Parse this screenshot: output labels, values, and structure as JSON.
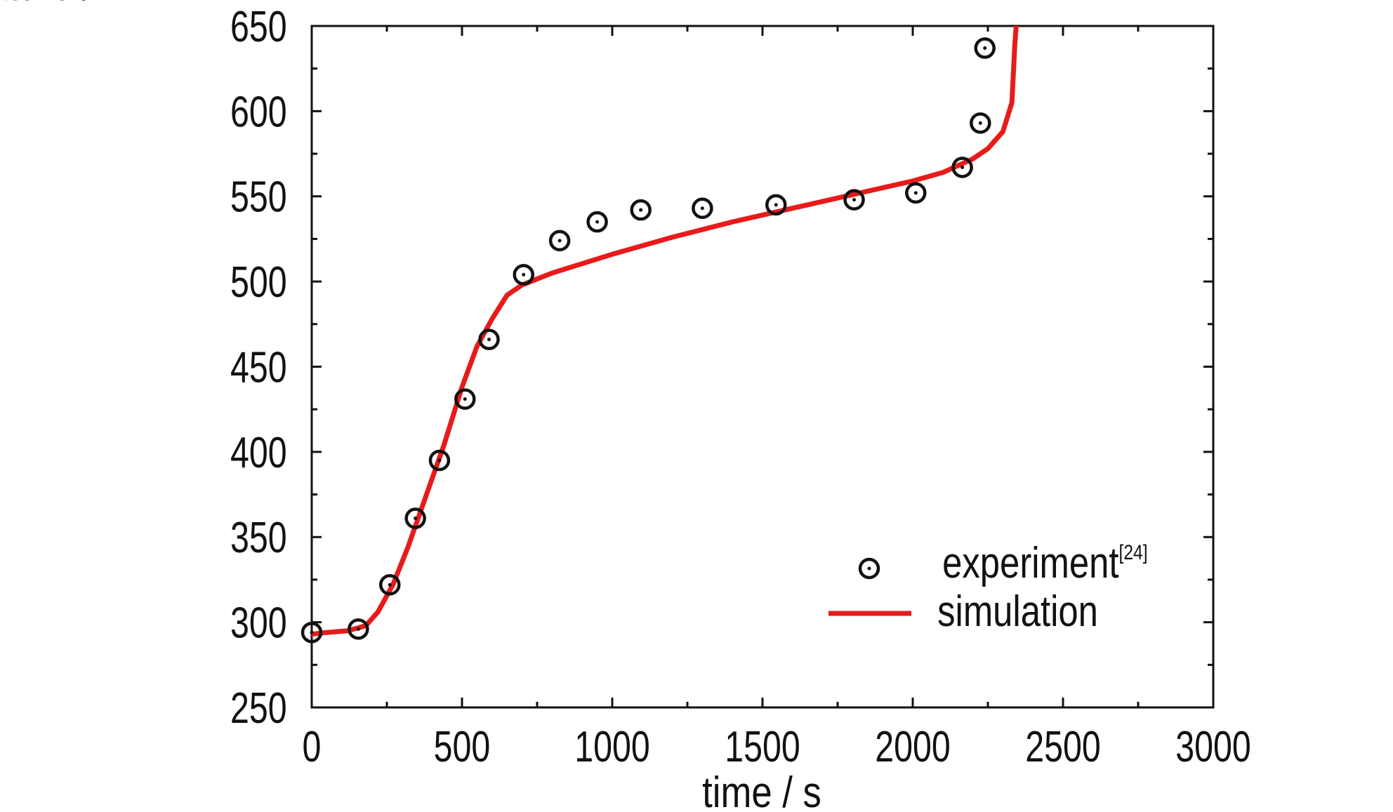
{
  "chart_data": {
    "type": "line",
    "xlabel": "time / s",
    "ylabel": "temperature / K",
    "xlim": [
      0,
      3000
    ],
    "ylim": [
      250,
      650
    ],
    "x_ticks": [
      "0",
      "500",
      "1000",
      "1500",
      "2000",
      "2500",
      "3000"
    ],
    "y_ticks": [
      "250",
      "300",
      "350",
      "400",
      "450",
      "500",
      "550",
      "600",
      "650"
    ],
    "grid": false,
    "legend_position": "bottom-right",
    "series": [
      {
        "name": "experiment",
        "legend_superscript": "[24]",
        "style": "scatter",
        "marker": "circle-dot",
        "color": "#111111",
        "points": [
          [
            0,
            294
          ],
          [
            155,
            296
          ],
          [
            260,
            322
          ],
          [
            345,
            361
          ],
          [
            425,
            395
          ],
          [
            510,
            431
          ],
          [
            590,
            466
          ],
          [
            705,
            504
          ],
          [
            825,
            524
          ],
          [
            950,
            535
          ],
          [
            1095,
            542
          ],
          [
            1300,
            543
          ],
          [
            1545,
            545
          ],
          [
            1805,
            548
          ],
          [
            2010,
            552
          ],
          [
            2165,
            567
          ],
          [
            2225,
            593
          ],
          [
            2240,
            637
          ]
        ]
      },
      {
        "name": "simulation",
        "style": "line",
        "color": "#e81a1a",
        "points": [
          [
            0,
            293
          ],
          [
            50,
            294
          ],
          [
            120,
            295
          ],
          [
            180,
            298
          ],
          [
            220,
            306
          ],
          [
            270,
            322
          ],
          [
            320,
            344
          ],
          [
            380,
            374
          ],
          [
            440,
            404
          ],
          [
            500,
            438
          ],
          [
            550,
            462
          ],
          [
            600,
            478
          ],
          [
            650,
            492
          ],
          [
            700,
            498
          ],
          [
            800,
            505
          ],
          [
            1000,
            516
          ],
          [
            1200,
            526
          ],
          [
            1400,
            535
          ],
          [
            1600,
            543
          ],
          [
            1800,
            551
          ],
          [
            2000,
            559
          ],
          [
            2100,
            564
          ],
          [
            2200,
            572
          ],
          [
            2250,
            578
          ],
          [
            2300,
            588
          ],
          [
            2330,
            605
          ],
          [
            2340,
            640
          ],
          [
            2345,
            652
          ]
        ]
      }
    ]
  }
}
